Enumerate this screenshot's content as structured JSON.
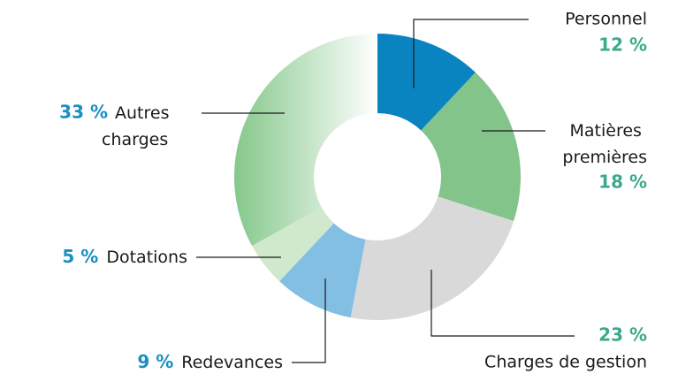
{
  "chart_data": {
    "type": "donut",
    "categories": [
      "Personnel",
      "Matières premières",
      "Charges de gestion",
      "Redevances",
      "Dotations",
      "Autres charges"
    ],
    "values": [
      12,
      18,
      23,
      9,
      5,
      33
    ],
    "value_labels": [
      "12 %",
      "18 %",
      "23 %",
      "9 %",
      "5 %",
      "33 %"
    ],
    "colors": [
      "#0a84c1",
      "#82c48a",
      "#d9d9d9",
      "#82bfe3",
      "#d0e8cc",
      "#85c88b"
    ]
  }
}
